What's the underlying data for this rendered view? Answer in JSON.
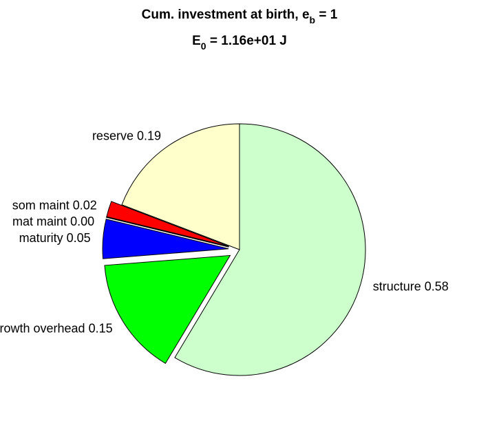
{
  "chart_data": {
    "type": "pie",
    "title": [
      "Cum. investment at birth, e",
      "b",
      " = 1"
    ],
    "subtitle": [
      "E",
      "0",
      " = 1.16e+01 J"
    ],
    "categories": [
      "structure",
      "growth overhead",
      "maturity",
      "mat maint",
      "som maint",
      "reserve"
    ],
    "values": [
      0.58,
      0.15,
      0.05,
      0.0,
      0.02,
      0.19
    ],
    "value_labels": [
      "0.58",
      "0.15",
      "0.05",
      "0.00",
      "0.02",
      "0.19"
    ],
    "colors": [
      "#ccffcc",
      "#00ff00",
      "#0000ff",
      "#ff00ff",
      "#ff0000",
      "#ffffcc"
    ],
    "explode": [
      false,
      true,
      true,
      true,
      true,
      false
    ]
  }
}
